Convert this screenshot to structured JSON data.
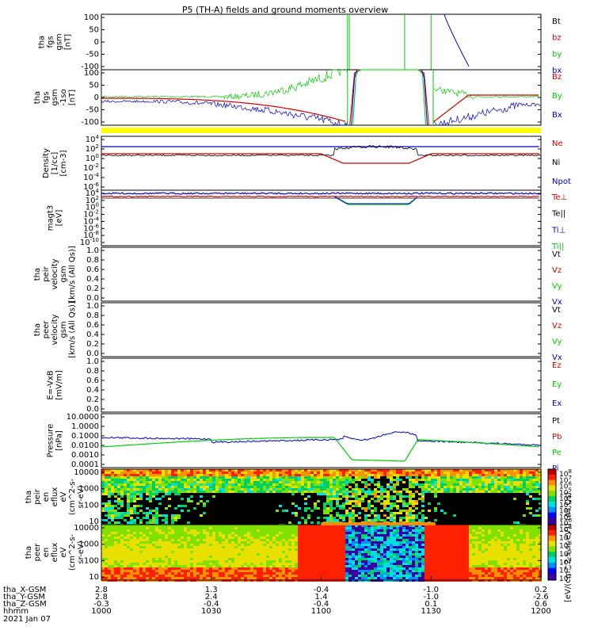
{
  "title": "P5 (TH-A) fields and ground moments overview",
  "date": "2021 Jan 07",
  "colors": {
    "black": "#000000",
    "red": "#d00000",
    "green": "#00cc00",
    "blue": "#0000cc",
    "yellow": "#ffff00",
    "orange": "#ff8c00"
  },
  "chart_data": [
    {
      "type": "line",
      "panel": "fgs_gsm",
      "ylabel": [
        "tha",
        "fgs",
        "gsm",
        "[nT]"
      ],
      "yticks": [
        "100",
        "50",
        "0",
        "-50",
        "-100"
      ],
      "ylim": [
        -100,
        100
      ],
      "legend": [
        {
          "name": "Bt",
          "color": "#000000"
        },
        {
          "name": "bz",
          "color": "#d00000"
        },
        {
          "name": "by",
          "color": "#00cc00"
        },
        {
          "name": "bx",
          "color": "#0000cc"
        }
      ]
    },
    {
      "type": "line",
      "panel": "fgs_gsm_dc",
      "ylabel": [
        "tha",
        "fgs",
        "gsm",
        "-1so",
        "[nT]"
      ],
      "yticks": [
        "100",
        "50",
        "0",
        "-50",
        "-100"
      ],
      "ylim": [
        -120,
        100
      ],
      "legend": [
        {
          "name": "Bz",
          "color": "#d00000"
        },
        {
          "name": "By",
          "color": "#00cc00"
        },
        {
          "name": "Bx",
          "color": "#0000cc"
        }
      ]
    },
    {
      "type": "line",
      "panel": "density",
      "ylabel": [
        "Density",
        "[1/cc]",
        "[cm-3]"
      ],
      "yticks": [
        "10^4",
        "10^2",
        "10^0",
        "10^-2",
        "10^-4",
        "10^-6"
      ],
      "legend": [
        {
          "name": "Ne",
          "color": "#d00000"
        },
        {
          "name": "Ni",
          "color": "#000000"
        },
        {
          "name": "Npot",
          "color": "#0000cc"
        }
      ]
    },
    {
      "type": "line",
      "panel": "temperature",
      "ylabel": [
        "magt3",
        "[eV]"
      ],
      "yticks": [
        "10^4",
        "10^2",
        "10^0",
        "10^-2",
        "10^-4",
        "10^-6",
        "10^-8",
        "10^-10"
      ],
      "legend": [
        {
          "name": "Te⊥",
          "color": "#d00000"
        },
        {
          "name": "Te||",
          "color": "#000000"
        },
        {
          "name": "Ti⊥",
          "color": "#0000cc"
        },
        {
          "name": "Ti||",
          "color": "#00cc00"
        }
      ]
    },
    {
      "type": "line",
      "panel": "peir_velocity",
      "ylabel": [
        "tha",
        "peir",
        "velocity",
        "gsm",
        "[km/s (All Qs)]"
      ],
      "yticks": [
        "1.0",
        "0.8",
        "0.6",
        "0.4",
        "0.2",
        "0.0"
      ],
      "ylim": [
        0,
        1
      ],
      "legend": [
        {
          "name": "Vt",
          "color": "#000000"
        },
        {
          "name": "Vz",
          "color": "#d00000"
        },
        {
          "name": "Vy",
          "color": "#00cc00"
        },
        {
          "name": "Vx",
          "color": "#0000cc"
        }
      ]
    },
    {
      "type": "line",
      "panel": "peer_velocity",
      "ylabel": [
        "tha",
        "peer",
        "velocity",
        "gsm",
        "[km/s (All Qs)]"
      ],
      "yticks": [
        "1.0",
        "0.8",
        "0.6",
        "0.4",
        "0.2",
        "0.0"
      ],
      "ylim": [
        0,
        1
      ],
      "legend": [
        {
          "name": "Vt",
          "color": "#000000"
        },
        {
          "name": "Vz",
          "color": "#d00000"
        },
        {
          "name": "Vy",
          "color": "#00cc00"
        },
        {
          "name": "Vx",
          "color": "#0000cc"
        }
      ]
    },
    {
      "type": "line",
      "panel": "efield",
      "ylabel": [
        "E=-VxB",
        "[mV/m]"
      ],
      "yticks": [
        "1.0",
        "0.8",
        "0.6",
        "0.4",
        "0.2",
        "0.0"
      ],
      "ylim": [
        0,
        1
      ],
      "legend": [
        {
          "name": "Ez",
          "color": "#d00000"
        },
        {
          "name": "Ey",
          "color": "#00cc00"
        },
        {
          "name": "Ex",
          "color": "#0000cc"
        }
      ]
    },
    {
      "type": "line",
      "panel": "pressure",
      "ylabel": [
        "Pressure",
        "[nPa]"
      ],
      "yticks": [
        "10.0000",
        "1.0000",
        "0.1000",
        "0.0100",
        "0.0010",
        "0.0001"
      ],
      "legend": [
        {
          "name": "Pt",
          "color": "#000000"
        },
        {
          "name": "Pb",
          "color": "#d00000"
        },
        {
          "name": "Pe",
          "color": "#00cc00"
        },
        {
          "name": "Pi",
          "color": "#0000cc"
        }
      ]
    },
    {
      "type": "heatmap",
      "panel": "peir_eflux",
      "ylabel": [
        "tha",
        "peir",
        "en",
        "eflux",
        "eV",
        "(cm^2-s-",
        "sr-eV)"
      ],
      "yticks": [
        "10000",
        "1000",
        "100",
        "10"
      ],
      "colorbar_ticks": [
        "10^8",
        "10^7",
        "10^6",
        "10^5",
        "10^4",
        "10^3",
        "10^2",
        "10^1",
        "10^0"
      ],
      "colorbar_label": "[eV/(cm^2-s-sr-eV)] (All Qs)"
    },
    {
      "type": "heatmap",
      "panel": "peer_eflux",
      "ylabel": [
        "tha",
        "peer",
        "en",
        "eflux",
        "eV",
        "(cm^2-s-",
        "sr-eV)"
      ],
      "yticks": [
        "10000",
        "1000",
        "100",
        "10"
      ],
      "colorbar_ticks": [
        "10^8",
        "10^7",
        "10^6",
        "10^5",
        "10^4",
        "10^3",
        "10^2"
      ]
    }
  ],
  "xaxis": {
    "rows": [
      {
        "label": "tha_X-GSM",
        "values": [
          "2.8",
          "1.3",
          "-0.4",
          "-1.0",
          "0.2"
        ]
      },
      {
        "label": "tha_Y-GSM",
        "values": [
          "2.8",
          "2.4",
          "1.4",
          "-1.0",
          "-2.6"
        ]
      },
      {
        "label": "tha_Z-GSM",
        "values": [
          "-0.3",
          "-0.4",
          "-0.4",
          "0.1",
          "0.6"
        ]
      },
      {
        "label": "hhmm",
        "values": [
          "1000",
          "1030",
          "1100",
          "1130",
          "1200"
        ]
      }
    ]
  }
}
